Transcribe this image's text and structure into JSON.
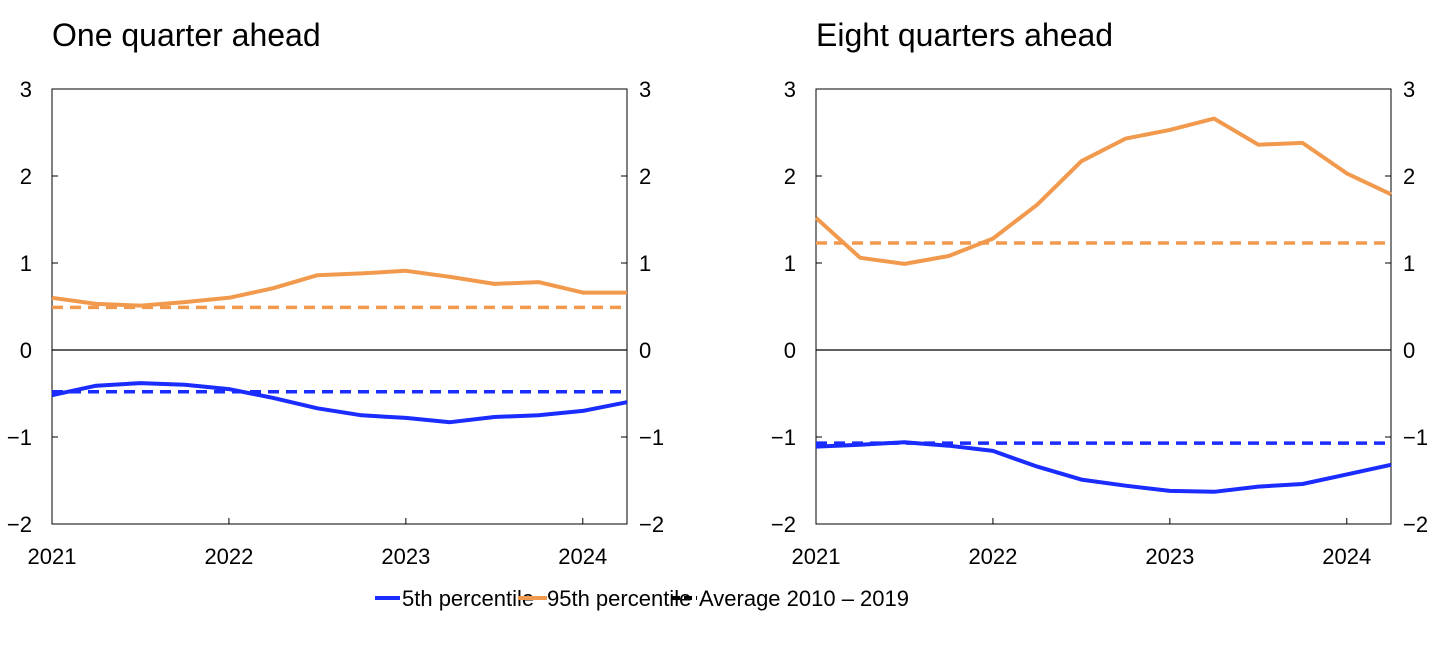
{
  "legend": {
    "items": [
      {
        "label": "5th percentile",
        "color": "#1a2cff",
        "style": "solid"
      },
      {
        "label": "95th percentile",
        "color": "#f19a4d",
        "style": "solid"
      },
      {
        "label": "Average 2010 – 2019",
        "color": "#000000",
        "style": "dashed"
      }
    ],
    "placement": "bottom-center"
  },
  "chart_data": [
    {
      "type": "line",
      "title": "One quarter ahead",
      "x": [
        "2021Q1",
        "2021Q2",
        "2021Q3",
        "2021Q4",
        "2022Q1",
        "2022Q2",
        "2022Q3",
        "2022Q4",
        "2023Q1",
        "2023Q2",
        "2023Q3",
        "2023Q4",
        "2024Q1",
        "2024Q2"
      ],
      "x_ticks": [
        "2021",
        "2022",
        "2023",
        "2024"
      ],
      "ylim": [
        -2,
        3
      ],
      "y_ticks": [
        "3",
        "2",
        "1",
        "0",
        "−1",
        "−2"
      ],
      "series": [
        {
          "name": "5th percentile",
          "color": "#1a2cff",
          "values": [
            -0.52,
            -0.41,
            -0.38,
            -0.4,
            -0.45,
            -0.55,
            -0.67,
            -0.75,
            -0.78,
            -0.83,
            -0.77,
            -0.75,
            -0.7,
            -0.6
          ]
        },
        {
          "name": "95th percentile",
          "color": "#f19a4d",
          "values": [
            0.6,
            0.53,
            0.51,
            0.55,
            0.6,
            0.71,
            0.86,
            0.88,
            0.91,
            0.84,
            0.76,
            0.78,
            0.66,
            0.66
          ]
        }
      ],
      "averages": [
        {
          "name": "Average 2010 – 2019",
          "of": "5th percentile",
          "color": "#1a2cff",
          "value": -0.48
        },
        {
          "name": "Average 2010 – 2019",
          "of": "95th percentile",
          "color": "#f19a4d",
          "value": 0.49
        }
      ],
      "zero_line": true,
      "grid": false
    },
    {
      "type": "line",
      "title": "Eight quarters ahead",
      "x": [
        "2021Q1",
        "2021Q2",
        "2021Q3",
        "2021Q4",
        "2022Q1",
        "2022Q2",
        "2022Q3",
        "2022Q4",
        "2023Q1",
        "2023Q2",
        "2023Q3",
        "2023Q4",
        "2024Q1",
        "2024Q2"
      ],
      "x_ticks": [
        "2021",
        "2022",
        "2023",
        "2024"
      ],
      "ylim": [
        -2,
        3
      ],
      "y_ticks": [
        "3",
        "2",
        "1",
        "0",
        "−1",
        "−2"
      ],
      "series": [
        {
          "name": "5th percentile",
          "color": "#1a2cff",
          "values": [
            -1.11,
            -1.09,
            -1.06,
            -1.1,
            -1.16,
            -1.34,
            -1.49,
            -1.56,
            -1.62,
            -1.63,
            -1.57,
            -1.54,
            -1.43,
            -1.32
          ]
        },
        {
          "name": "95th percentile",
          "color": "#f19a4d",
          "values": [
            1.52,
            1.06,
            0.99,
            1.08,
            1.28,
            1.67,
            2.17,
            2.43,
            2.53,
            2.66,
            2.36,
            2.38,
            2.03,
            1.79
          ]
        }
      ],
      "averages": [
        {
          "name": "Average 2010 – 2019",
          "of": "5th percentile",
          "color": "#1a2cff",
          "value": -1.07
        },
        {
          "name": "Average 2010 – 2019",
          "of": "95th percentile",
          "color": "#f19a4d",
          "value": 1.23
        }
      ],
      "zero_line": true,
      "grid": false
    }
  ]
}
